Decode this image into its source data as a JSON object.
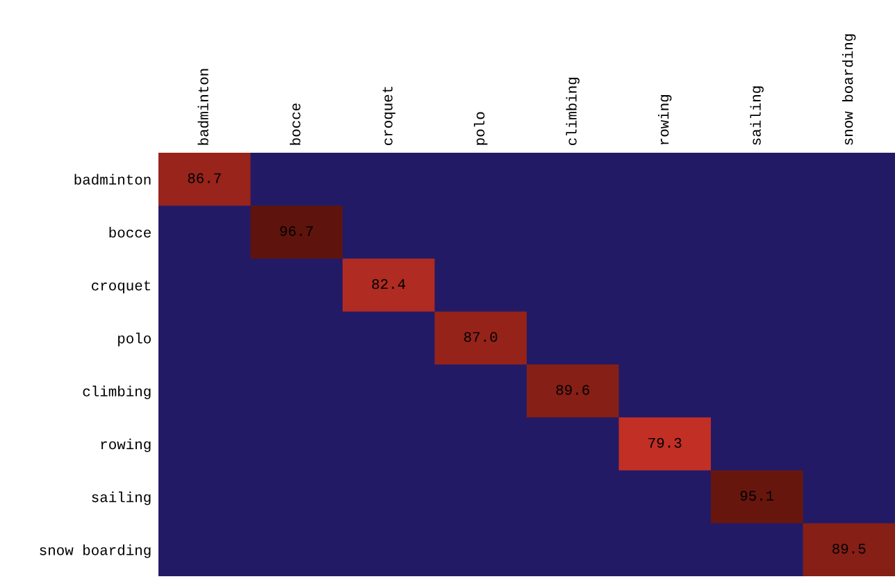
{
  "chart_data": {
    "type": "heatmap",
    "categories": [
      "badminton",
      "bocce",
      "croquet",
      "polo",
      "climbing",
      "rowing",
      "sailing",
      "snow boarding"
    ],
    "y_categories": [
      "badminton",
      "bocce",
      "croquet",
      "polo",
      "climbing",
      "rowing",
      "sailing",
      "snow boarding"
    ],
    "cells": [
      [
        86.7,
        null,
        null,
        null,
        null,
        null,
        null,
        null
      ],
      [
        null,
        96.7,
        null,
        null,
        null,
        null,
        null,
        null
      ],
      [
        null,
        null,
        82.4,
        null,
        null,
        null,
        null,
        null
      ],
      [
        null,
        null,
        null,
        87.0,
        null,
        null,
        null,
        null
      ],
      [
        null,
        null,
        null,
        null,
        89.6,
        null,
        null,
        null
      ],
      [
        null,
        null,
        null,
        null,
        null,
        79.3,
        null,
        null
      ],
      [
        null,
        null,
        null,
        null,
        null,
        null,
        95.1,
        null
      ],
      [
        null,
        null,
        null,
        null,
        null,
        null,
        null,
        89.5
      ]
    ],
    "cell_labels": [
      [
        "86.7",
        null,
        null,
        null,
        null,
        null,
        null,
        null
      ],
      [
        null,
        "96.7",
        null,
        null,
        null,
        null,
        null,
        null
      ],
      [
        null,
        null,
        "82.4",
        null,
        null,
        null,
        null,
        null
      ],
      [
        null,
        null,
        null,
        "87.0",
        null,
        null,
        null,
        null
      ],
      [
        null,
        null,
        null,
        null,
        "89.6",
        null,
        null,
        null
      ],
      [
        null,
        null,
        null,
        null,
        null,
        "79.3",
        null,
        null
      ],
      [
        null,
        null,
        null,
        null,
        null,
        null,
        "95.1",
        null
      ],
      [
        null,
        null,
        null,
        null,
        null,
        null,
        null,
        "89.5"
      ]
    ]
  }
}
